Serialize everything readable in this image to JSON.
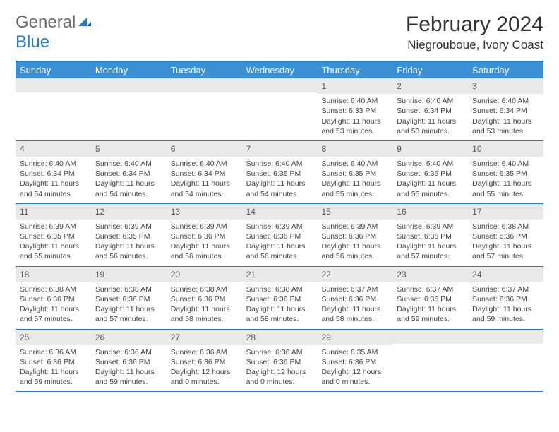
{
  "logo": {
    "part1": "General",
    "part2": "Blue"
  },
  "title": "February 2024",
  "location": "Niegrouboue, Ivory Coast",
  "colors": {
    "header_bg": "#3b8fd4",
    "border": "#2b7bbf",
    "daynum_bg": "#e9e9e9",
    "text": "#333333"
  },
  "day_headers": [
    "Sunday",
    "Monday",
    "Tuesday",
    "Wednesday",
    "Thursday",
    "Friday",
    "Saturday"
  ],
  "weeks": [
    [
      null,
      null,
      null,
      null,
      {
        "n": "1",
        "sr": "Sunrise: 6:40 AM",
        "ss": "Sunset: 6:33 PM",
        "dl": "Daylight: 11 hours and 53 minutes."
      },
      {
        "n": "2",
        "sr": "Sunrise: 6:40 AM",
        "ss": "Sunset: 6:34 PM",
        "dl": "Daylight: 11 hours and 53 minutes."
      },
      {
        "n": "3",
        "sr": "Sunrise: 6:40 AM",
        "ss": "Sunset: 6:34 PM",
        "dl": "Daylight: 11 hours and 53 minutes."
      }
    ],
    [
      {
        "n": "4",
        "sr": "Sunrise: 6:40 AM",
        "ss": "Sunset: 6:34 PM",
        "dl": "Daylight: 11 hours and 54 minutes."
      },
      {
        "n": "5",
        "sr": "Sunrise: 6:40 AM",
        "ss": "Sunset: 6:34 PM",
        "dl": "Daylight: 11 hours and 54 minutes."
      },
      {
        "n": "6",
        "sr": "Sunrise: 6:40 AM",
        "ss": "Sunset: 6:34 PM",
        "dl": "Daylight: 11 hours and 54 minutes."
      },
      {
        "n": "7",
        "sr": "Sunrise: 6:40 AM",
        "ss": "Sunset: 6:35 PM",
        "dl": "Daylight: 11 hours and 54 minutes."
      },
      {
        "n": "8",
        "sr": "Sunrise: 6:40 AM",
        "ss": "Sunset: 6:35 PM",
        "dl": "Daylight: 11 hours and 55 minutes."
      },
      {
        "n": "9",
        "sr": "Sunrise: 6:40 AM",
        "ss": "Sunset: 6:35 PM",
        "dl": "Daylight: 11 hours and 55 minutes."
      },
      {
        "n": "10",
        "sr": "Sunrise: 6:40 AM",
        "ss": "Sunset: 6:35 PM",
        "dl": "Daylight: 11 hours and 55 minutes."
      }
    ],
    [
      {
        "n": "11",
        "sr": "Sunrise: 6:39 AM",
        "ss": "Sunset: 6:35 PM",
        "dl": "Daylight: 11 hours and 55 minutes."
      },
      {
        "n": "12",
        "sr": "Sunrise: 6:39 AM",
        "ss": "Sunset: 6:35 PM",
        "dl": "Daylight: 11 hours and 56 minutes."
      },
      {
        "n": "13",
        "sr": "Sunrise: 6:39 AM",
        "ss": "Sunset: 6:36 PM",
        "dl": "Daylight: 11 hours and 56 minutes."
      },
      {
        "n": "14",
        "sr": "Sunrise: 6:39 AM",
        "ss": "Sunset: 6:36 PM",
        "dl": "Daylight: 11 hours and 56 minutes."
      },
      {
        "n": "15",
        "sr": "Sunrise: 6:39 AM",
        "ss": "Sunset: 6:36 PM",
        "dl": "Daylight: 11 hours and 56 minutes."
      },
      {
        "n": "16",
        "sr": "Sunrise: 6:39 AM",
        "ss": "Sunset: 6:36 PM",
        "dl": "Daylight: 11 hours and 57 minutes."
      },
      {
        "n": "17",
        "sr": "Sunrise: 6:38 AM",
        "ss": "Sunset: 6:36 PM",
        "dl": "Daylight: 11 hours and 57 minutes."
      }
    ],
    [
      {
        "n": "18",
        "sr": "Sunrise: 6:38 AM",
        "ss": "Sunset: 6:36 PM",
        "dl": "Daylight: 11 hours and 57 minutes."
      },
      {
        "n": "19",
        "sr": "Sunrise: 6:38 AM",
        "ss": "Sunset: 6:36 PM",
        "dl": "Daylight: 11 hours and 57 minutes."
      },
      {
        "n": "20",
        "sr": "Sunrise: 6:38 AM",
        "ss": "Sunset: 6:36 PM",
        "dl": "Daylight: 11 hours and 58 minutes."
      },
      {
        "n": "21",
        "sr": "Sunrise: 6:38 AM",
        "ss": "Sunset: 6:36 PM",
        "dl": "Daylight: 11 hours and 58 minutes."
      },
      {
        "n": "22",
        "sr": "Sunrise: 6:37 AM",
        "ss": "Sunset: 6:36 PM",
        "dl": "Daylight: 11 hours and 58 minutes."
      },
      {
        "n": "23",
        "sr": "Sunrise: 6:37 AM",
        "ss": "Sunset: 6:36 PM",
        "dl": "Daylight: 11 hours and 59 minutes."
      },
      {
        "n": "24",
        "sr": "Sunrise: 6:37 AM",
        "ss": "Sunset: 6:36 PM",
        "dl": "Daylight: 11 hours and 59 minutes."
      }
    ],
    [
      {
        "n": "25",
        "sr": "Sunrise: 6:36 AM",
        "ss": "Sunset: 6:36 PM",
        "dl": "Daylight: 11 hours and 59 minutes."
      },
      {
        "n": "26",
        "sr": "Sunrise: 6:36 AM",
        "ss": "Sunset: 6:36 PM",
        "dl": "Daylight: 11 hours and 59 minutes."
      },
      {
        "n": "27",
        "sr": "Sunrise: 6:36 AM",
        "ss": "Sunset: 6:36 PM",
        "dl": "Daylight: 12 hours and 0 minutes."
      },
      {
        "n": "28",
        "sr": "Sunrise: 6:36 AM",
        "ss": "Sunset: 6:36 PM",
        "dl": "Daylight: 12 hours and 0 minutes."
      },
      {
        "n": "29",
        "sr": "Sunrise: 6:35 AM",
        "ss": "Sunset: 6:36 PM",
        "dl": "Daylight: 12 hours and 0 minutes."
      },
      null,
      null
    ]
  ]
}
